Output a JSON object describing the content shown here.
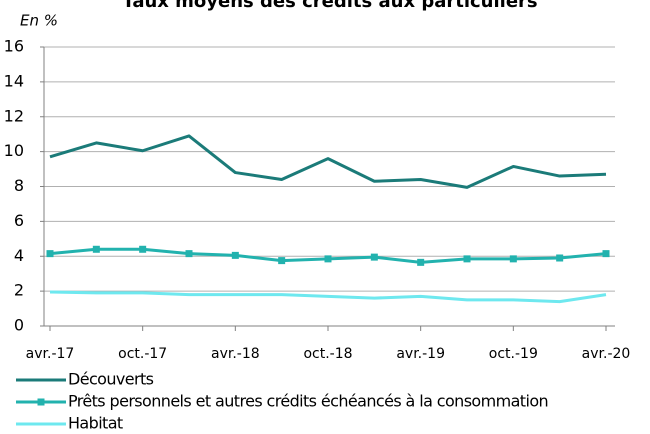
{
  "chart_data": {
    "type": "line",
    "title": "Taux moyens des crédits aux particuliers",
    "subtitle": "En %",
    "categories": [
      "avr.-17",
      null,
      "oct.-17",
      null,
      "avr.-18",
      null,
      "oct.-18",
      null,
      "avr.-19",
      null,
      "oct.-19",
      null,
      "avr.-20"
    ],
    "series": [
      {
        "name": "Découverts",
        "color": "#1b7b79",
        "values": [
          9.7,
          10.5,
          10.05,
          10.9,
          8.8,
          8.4,
          9.6,
          8.3,
          8.4,
          7.95,
          9.15,
          8.6,
          8.7
        ]
      },
      {
        "name": "Prêts personnels et autres crédits échéancés à la consommation",
        "color": "#22b2ae",
        "marker": "square",
        "values": [
          4.15,
          4.4,
          4.4,
          4.15,
          4.05,
          3.75,
          3.85,
          3.95,
          3.65,
          3.85,
          3.85,
          3.9,
          4.15
        ]
      },
      {
        "name": "Habitat",
        "color": "#6ee8ef",
        "values": [
          1.95,
          1.9,
          1.9,
          1.8,
          1.8,
          1.8,
          1.7,
          1.6,
          1.7,
          1.5,
          1.5,
          1.4,
          1.8
        ]
      }
    ],
    "ylim": [
      0,
      16
    ],
    "yticks": [
      0,
      2,
      4,
      6,
      8,
      10,
      12,
      14,
      16
    ],
    "grid": true,
    "legend": "bottom"
  }
}
